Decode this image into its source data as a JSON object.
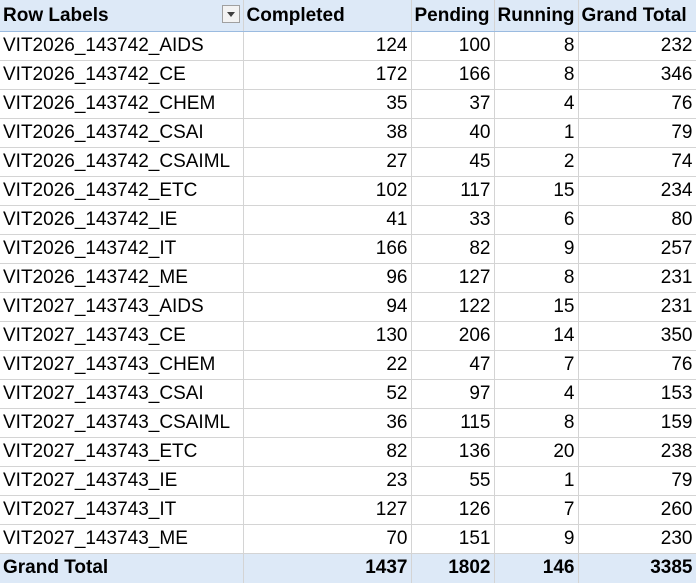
{
  "headers": {
    "row_labels": "Row Labels",
    "completed": "Completed",
    "pending": "Pending",
    "running": "Running",
    "grand_total": "Grand Total"
  },
  "rows": [
    {
      "label": "VIT2026_143742_AIDS",
      "completed": "124",
      "pending": "100",
      "running": "8",
      "total": "232"
    },
    {
      "label": "VIT2026_143742_CE",
      "completed": "172",
      "pending": "166",
      "running": "8",
      "total": "346"
    },
    {
      "label": "VIT2026_143742_CHEM",
      "completed": "35",
      "pending": "37",
      "running": "4",
      "total": "76"
    },
    {
      "label": "VIT2026_143742_CSAI",
      "completed": "38",
      "pending": "40",
      "running": "1",
      "total": "79"
    },
    {
      "label": "VIT2026_143742_CSAIML",
      "completed": "27",
      "pending": "45",
      "running": "2",
      "total": "74"
    },
    {
      "label": "VIT2026_143742_ETC",
      "completed": "102",
      "pending": "117",
      "running": "15",
      "total": "234"
    },
    {
      "label": "VIT2026_143742_IE",
      "completed": "41",
      "pending": "33",
      "running": "6",
      "total": "80"
    },
    {
      "label": "VIT2026_143742_IT",
      "completed": "166",
      "pending": "82",
      "running": "9",
      "total": "257"
    },
    {
      "label": "VIT2026_143742_ME",
      "completed": "96",
      "pending": "127",
      "running": "8",
      "total": "231"
    },
    {
      "label": "VIT2027_143743_AIDS",
      "completed": "94",
      "pending": "122",
      "running": "15",
      "total": "231"
    },
    {
      "label": "VIT2027_143743_CE",
      "completed": "130",
      "pending": "206",
      "running": "14",
      "total": "350"
    },
    {
      "label": "VIT2027_143743_CHEM",
      "completed": "22",
      "pending": "47",
      "running": "7",
      "total": "76"
    },
    {
      "label": "VIT2027_143743_CSAI",
      "completed": "52",
      "pending": "97",
      "running": "4",
      "total": "153"
    },
    {
      "label": "VIT2027_143743_CSAIML",
      "completed": "36",
      "pending": "115",
      "running": "8",
      "total": "159"
    },
    {
      "label": "VIT2027_143743_ETC",
      "completed": "82",
      "pending": "136",
      "running": "20",
      "total": "238"
    },
    {
      "label": "VIT2027_143743_IE",
      "completed": "23",
      "pending": "55",
      "running": "1",
      "total": "79"
    },
    {
      "label": "VIT2027_143743_IT",
      "completed": "127",
      "pending": "126",
      "running": "7",
      "total": "260"
    },
    {
      "label": "VIT2027_143743_ME",
      "completed": "70",
      "pending": "151",
      "running": "9",
      "total": "230"
    }
  ],
  "totals": {
    "label": "Grand Total",
    "completed": "1437",
    "pending": "1802",
    "running": "146",
    "total": "3385"
  },
  "icons": {
    "filter": "chevron-down-icon"
  },
  "colors": {
    "header_bg": "#dde9f7",
    "gridline": "#d4d4d4"
  }
}
